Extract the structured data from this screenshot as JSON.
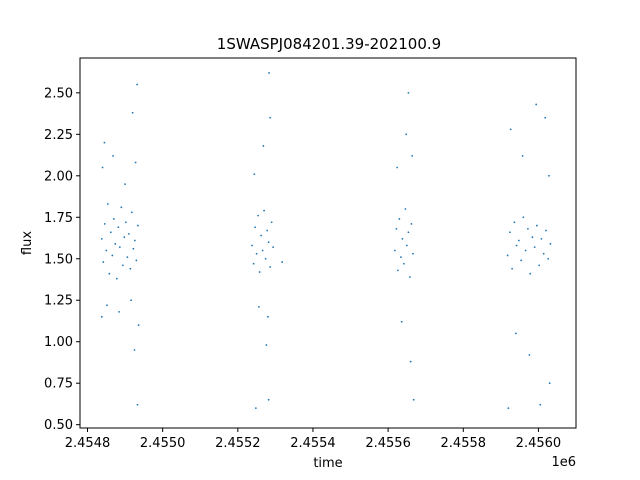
{
  "chart_data": {
    "type": "scatter",
    "title": "1SWASPJ084201.39-202100.9",
    "xlabel": "time",
    "ylabel": "flux",
    "x_offset_label": "1e6",
    "xlim": [
      2454780,
      2456100
    ],
    "ylim": [
      0.48,
      2.71
    ],
    "grid": false,
    "marker_color": "#1f77b4",
    "x_ticks": [
      2454800,
      2455000,
      2455200,
      2455400,
      2455600,
      2455800,
      2456000
    ],
    "x_tick_labels": [
      "2.4548",
      "2.4550",
      "2.4552",
      "2.4554",
      "2.4556",
      "2.4558",
      "2.4560"
    ],
    "y_ticks": [
      0.5,
      0.75,
      1.0,
      1.25,
      1.5,
      1.75,
      2.0,
      2.25,
      2.5
    ],
    "y_tick_labels": [
      "0.50",
      "0.75",
      "1.00",
      "1.25",
      "1.50",
      "1.75",
      "2.00",
      "2.25",
      "2.50"
    ],
    "series": [
      {
        "points": [
          [
            2454838,
            1.62
          ],
          [
            2454842,
            1.48
          ],
          [
            2454846,
            1.71
          ],
          [
            2454850,
            1.55
          ],
          [
            2454854,
            1.83
          ],
          [
            2454858,
            1.41
          ],
          [
            2454862,
            1.66
          ],
          [
            2454866,
            1.52
          ],
          [
            2454870,
            1.74
          ],
          [
            2454874,
            1.59
          ],
          [
            2454878,
            1.38
          ],
          [
            2454882,
            1.69
          ],
          [
            2454886,
            1.57
          ],
          [
            2454890,
            1.81
          ],
          [
            2454894,
            1.46
          ],
          [
            2454898,
            1.63
          ],
          [
            2454902,
            1.72
          ],
          [
            2454906,
            1.51
          ],
          [
            2454910,
            1.65
          ],
          [
            2454914,
            1.44
          ],
          [
            2454918,
            1.78
          ],
          [
            2454922,
            1.56
          ],
          [
            2454926,
            1.61
          ],
          [
            2454930,
            1.49
          ],
          [
            2454934,
            1.7
          ],
          [
            2454840,
            2.05
          ],
          [
            2454852,
            1.22
          ],
          [
            2454868,
            2.12
          ],
          [
            2454884,
            1.18
          ],
          [
            2454900,
            1.95
          ],
          [
            2454916,
            1.25
          ],
          [
            2454928,
            2.08
          ],
          [
            2454936,
            1.1
          ],
          [
            2454920,
            2.38
          ],
          [
            2454925,
            0.95
          ],
          [
            2454932,
            2.55
          ],
          [
            2454933,
            0.62
          ],
          [
            2454838,
            1.15
          ],
          [
            2454845,
            2.2
          ]
        ]
      },
      {
        "points": [
          [
            2455238,
            1.58
          ],
          [
            2455242,
            1.47
          ],
          [
            2455246,
            1.69
          ],
          [
            2455250,
            1.53
          ],
          [
            2455254,
            1.76
          ],
          [
            2455258,
            1.42
          ],
          [
            2455262,
            1.64
          ],
          [
            2455266,
            1.55
          ],
          [
            2455270,
            1.79
          ],
          [
            2455274,
            1.5
          ],
          [
            2455278,
            1.67
          ],
          [
            2455282,
            1.6
          ],
          [
            2455286,
            1.45
          ],
          [
            2455290,
            1.72
          ],
          [
            2455294,
            1.57
          ],
          [
            2455244,
            2.01
          ],
          [
            2455256,
            1.21
          ],
          [
            2455268,
            2.18
          ],
          [
            2455280,
            1.15
          ],
          [
            2455286,
            2.35
          ],
          [
            2455276,
            0.98
          ],
          [
            2455283,
            2.62
          ],
          [
            2455282,
            0.65
          ],
          [
            2455248,
            0.6
          ],
          [
            2455318,
            1.48
          ]
        ]
      },
      {
        "points": [
          [
            2455618,
            1.55
          ],
          [
            2455622,
            1.68
          ],
          [
            2455626,
            1.43
          ],
          [
            2455630,
            1.74
          ],
          [
            2455634,
            1.51
          ],
          [
            2455638,
            1.62
          ],
          [
            2455642,
            1.47
          ],
          [
            2455646,
            1.8
          ],
          [
            2455650,
            1.58
          ],
          [
            2455654,
            1.66
          ],
          [
            2455658,
            1.39
          ],
          [
            2455662,
            1.71
          ],
          [
            2455666,
            1.53
          ],
          [
            2455624,
            2.05
          ],
          [
            2455636,
            1.12
          ],
          [
            2455648,
            2.25
          ],
          [
            2455654,
            2.5
          ],
          [
            2455660,
            0.88
          ],
          [
            2455664,
            2.12
          ],
          [
            2455668,
            0.65
          ]
        ]
      },
      {
        "points": [
          [
            2455918,
            1.52
          ],
          [
            2455924,
            1.66
          ],
          [
            2455930,
            1.44
          ],
          [
            2455936,
            1.72
          ],
          [
            2455942,
            1.58
          ],
          [
            2455948,
            1.61
          ],
          [
            2455954,
            1.49
          ],
          [
            2455960,
            1.75
          ],
          [
            2455966,
            1.55
          ],
          [
            2455972,
            1.68
          ],
          [
            2455978,
            1.41
          ],
          [
            2455984,
            1.63
          ],
          [
            2455990,
            1.57
          ],
          [
            2455996,
            1.7
          ],
          [
            2456002,
            1.46
          ],
          [
            2456008,
            1.62
          ],
          [
            2456014,
            1.53
          ],
          [
            2456020,
            1.67
          ],
          [
            2456026,
            1.5
          ],
          [
            2456032,
            1.59
          ],
          [
            2455926,
            2.28
          ],
          [
            2455940,
            1.05
          ],
          [
            2455958,
            2.12
          ],
          [
            2455976,
            0.92
          ],
          [
            2455994,
            2.43
          ],
          [
            2456005,
            0.62
          ],
          [
            2456018,
            2.35
          ],
          [
            2456030,
            0.75
          ],
          [
            2455920,
            0.6
          ],
          [
            2456028,
            2.0
          ]
        ]
      }
    ]
  }
}
